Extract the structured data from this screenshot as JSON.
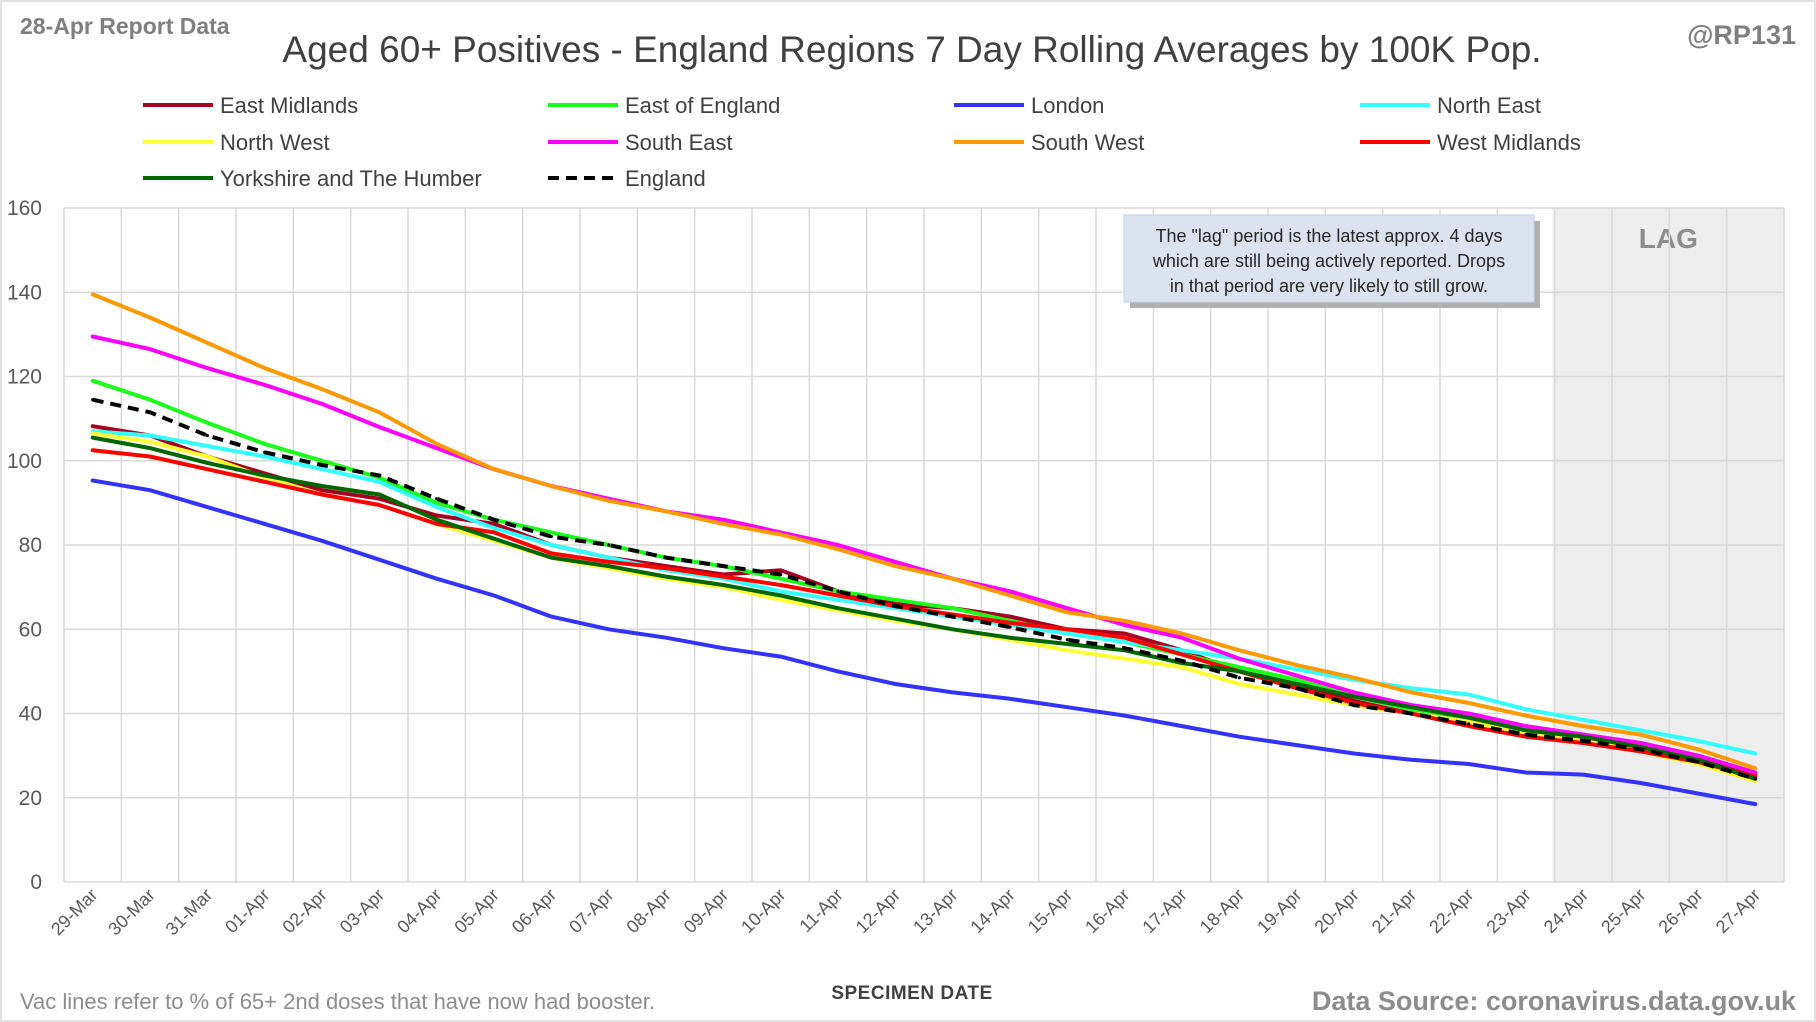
{
  "header": {
    "report_label": "28-Apr Report Data",
    "handle": "@RP131"
  },
  "footer": {
    "note": "Vac lines refer to % of 65+ 2nd doses that have now had booster.",
    "source": "Data Source: coronavirus.data.gov.uk"
  },
  "annotation": {
    "lines": [
      "The \"lag\" period is the latest approx. 4 days",
      "which are still being actively reported. Drops",
      "in that period are very likely to still grow."
    ],
    "lag_label": "LAG",
    "lag_start": "24-Apr",
    "lag_end": "27-Apr"
  },
  "chart_data": {
    "type": "line",
    "title": "Aged 60+ Positives - England Regions 7 Day Rolling Averages by 100K Pop.",
    "xlabel": "SPECIMEN DATE",
    "ylabel": "",
    "ylim": [
      0,
      160
    ],
    "yticks": [
      0,
      20,
      40,
      60,
      80,
      100,
      120,
      140,
      160
    ],
    "grid": true,
    "legend_position": "top",
    "categories": [
      "29-Mar",
      "30-Mar",
      "31-Mar",
      "01-Apr",
      "02-Apr",
      "03-Apr",
      "04-Apr",
      "05-Apr",
      "06-Apr",
      "07-Apr",
      "08-Apr",
      "09-Apr",
      "10-Apr",
      "11-Apr",
      "12-Apr",
      "13-Apr",
      "14-Apr",
      "15-Apr",
      "16-Apr",
      "17-Apr",
      "18-Apr",
      "19-Apr",
      "20-Apr",
      "21-Apr",
      "22-Apr",
      "23-Apr",
      "24-Apr",
      "25-Apr",
      "26-Apr",
      "27-Apr"
    ],
    "series": [
      {
        "name": "East Midlands",
        "color": "#a50021",
        "dash": "solid",
        "values": [
          108.2,
          106,
          101,
          97,
          93,
          91,
          87,
          85,
          80,
          77,
          75,
          73,
          74,
          69,
          66,
          65,
          63,
          60,
          59,
          55,
          50,
          47,
          43,
          40,
          38,
          36,
          34,
          32,
          29,
          25.5
        ]
      },
      {
        "name": "East of England",
        "color": "#1aff1a",
        "dash": "solid",
        "values": [
          119,
          114.5,
          109,
          104,
          100,
          96,
          90,
          86,
          83,
          80,
          77,
          75,
          72,
          69,
          67,
          65,
          62,
          59,
          57,
          54,
          51,
          48,
          44,
          41,
          39,
          37,
          35,
          33,
          30,
          26
        ]
      },
      {
        "name": "London",
        "color": "#3333ff",
        "dash": "solid",
        "values": [
          95.3,
          93,
          89,
          85,
          81,
          76.5,
          72,
          68,
          63,
          60,
          58,
          55.5,
          53.5,
          50,
          47,
          45,
          43.5,
          41.5,
          39.5,
          37,
          34.5,
          32.5,
          30.5,
          29,
          28,
          26,
          25.5,
          23.5,
          21,
          18.5
        ]
      },
      {
        "name": "North East",
        "color": "#33ffff",
        "dash": "solid",
        "values": [
          107,
          106,
          103.5,
          101,
          98,
          95,
          89,
          84,
          80,
          77,
          74,
          72,
          69,
          67,
          65,
          63,
          61,
          59,
          57,
          55,
          53,
          50.5,
          48,
          46,
          44.5,
          41,
          38.5,
          36,
          33.5,
          30.5
        ]
      },
      {
        "name": "North West",
        "color": "#ffff33",
        "dash": "solid",
        "values": [
          106.5,
          104.5,
          101,
          96,
          92,
          89.5,
          85,
          81,
          77,
          74.5,
          72,
          70,
          67,
          64.5,
          62,
          60,
          57.5,
          55,
          53,
          51,
          47,
          44.5,
          42,
          40,
          38,
          35.5,
          33.5,
          31,
          28,
          24
        ]
      },
      {
        "name": "South East",
        "color": "#ff00ff",
        "dash": "solid",
        "values": [
          129.5,
          126.5,
          122,
          118,
          113.5,
          108,
          103,
          98,
          94,
          91,
          88,
          86,
          83,
          80,
          76,
          72,
          69,
          65,
          61,
          58,
          53,
          49,
          45,
          42,
          40,
          37,
          35,
          33,
          30,
          26
        ]
      },
      {
        "name": "South West",
        "color": "#ff9900",
        "dash": "solid",
        "values": [
          139.5,
          134,
          128,
          122,
          117,
          111.5,
          104,
          98,
          94,
          90.5,
          88,
          85,
          82.5,
          79,
          75,
          72,
          68,
          64,
          62,
          59,
          55,
          51.5,
          48.5,
          45,
          42.5,
          39.5,
          37,
          35,
          31.5,
          27
        ]
      },
      {
        "name": "West Midlands",
        "color": "#ff0000",
        "dash": "solid",
        "values": [
          102.5,
          101,
          98,
          95,
          92,
          89.5,
          85,
          83,
          78,
          76,
          74.5,
          72.5,
          70.5,
          68,
          65.5,
          63.5,
          61.5,
          60,
          58,
          54,
          50,
          46,
          42.5,
          40,
          37,
          34.5,
          33,
          31,
          28.5,
          25
        ]
      },
      {
        "name": "Yorkshire and The Humber",
        "color": "#006600",
        "dash": "solid",
        "values": [
          105.5,
          103,
          99.5,
          96.5,
          94,
          92,
          86,
          81.5,
          77,
          75,
          72.5,
          70.5,
          68,
          65,
          62.5,
          60,
          58,
          56.5,
          55,
          52,
          50,
          47,
          44,
          41.5,
          39,
          36,
          34.5,
          32,
          29,
          24.5
        ]
      },
      {
        "name": "England",
        "color": "#000000",
        "dash": "dash",
        "values": [
          114.5,
          111.5,
          106,
          102,
          99,
          96.5,
          91,
          86,
          82,
          80,
          77,
          75,
          73,
          69,
          65.5,
          63,
          60.5,
          57.5,
          55.5,
          52.5,
          48.5,
          46,
          42,
          40,
          37.5,
          35,
          33.5,
          31.5,
          28.5,
          24.5
        ]
      }
    ]
  }
}
